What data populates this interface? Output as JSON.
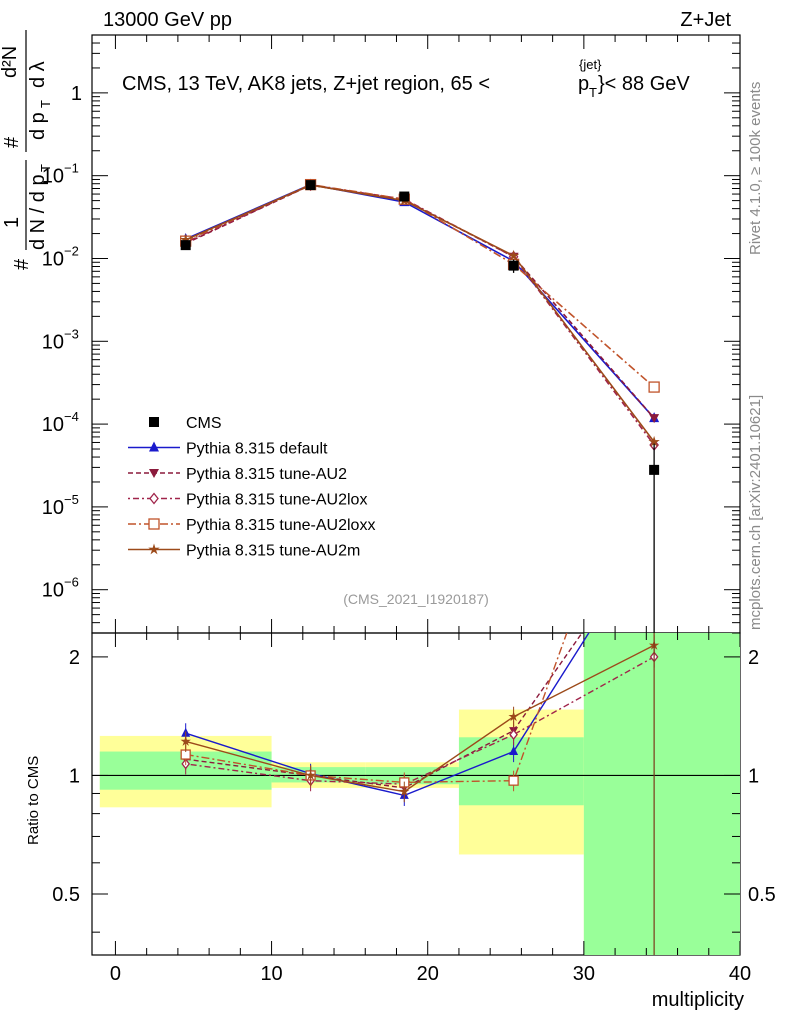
{
  "header": {
    "left": "13000 GeV pp",
    "right": "Z+Jet",
    "plot_title": "CMS, 13 TeV, AK8 jets, Z+jet region, 65 <",
    "plot_title_pt": "p",
    "plot_title_pt_sub": "T",
    "plot_title_pt_sup": "{jet}",
    "plot_title_end": "}< 88 GeV"
  },
  "sidebar": {
    "rivet": "Rivet 4.1.0, ≥ 100k events",
    "mcplots": "mcplots.cern.ch [arXiv:2401.10621]"
  },
  "analysis_id": "(CMS_2021_I1920187)",
  "ylabel_main": {
    "hash": "#",
    "one": "1",
    "dN": "d N / d p",
    "T": "T",
    "hash2": "#",
    "d2N": "d²N",
    "dpT": "d p",
    "dlambda": "d λ"
  },
  "ylabel_ratio": "Ratio to CMS",
  "colors": {
    "data": "#000000",
    "default": "#1a1acc",
    "au2": "#8b1a3c",
    "au2lox": "#a0244a",
    "au2loxx": "#c0532a",
    "au2m": "#9c4a1a",
    "band_inner": "#99ff99",
    "band_outer": "#ffff99"
  },
  "chart_data": {
    "type": "line",
    "title": "CMS, 13 TeV, AK8 jets, Z+jet region, 65 < p_T^{jet} < 88 GeV",
    "xlabel": "multiplicity",
    "ylabel": "1/dN/dpT dN²/dpT dλ",
    "xlim": [
      -1.5,
      40
    ],
    "ylim_main": [
      3e-07,
      5
    ],
    "ylim_ratio": [
      0.35,
      2.3
    ],
    "x_ticks": [
      "0",
      "10",
      "20",
      "30",
      "40"
    ],
    "y_ticks_main": [
      "10",
      "10",
      "10",
      "10",
      "10",
      "10",
      "1"
    ],
    "y_tick_exponents": [
      "−6",
      "−5",
      "−4",
      "−3",
      "−2",
      "−1",
      ""
    ],
    "y_ticks_ratio": [
      "0.5",
      "1",
      "2"
    ],
    "bins": [
      {
        "low": -1,
        "high": 10
      },
      {
        "low": 10,
        "high": 16
      },
      {
        "low": 16,
        "high": 22
      },
      {
        "low": 22,
        "high": 30
      },
      {
        "low": 30,
        "high": 40
      }
    ],
    "x": [
      4.5,
      12.5,
      18.5,
      25.5,
      34.5
    ],
    "data": {
      "name": "CMS",
      "values": [
        0.0145,
        0.077,
        0.056,
        0.0082,
        2.8e-05
      ],
      "err_low": [
        0.0012,
        0.003,
        0.003,
        0.0015,
        2.8e-05
      ],
      "err_high": [
        0.0012,
        0.003,
        0.003,
        0.0015,
        3e-05
      ]
    },
    "series": [
      {
        "name": "Pythia 8.315 default",
        "key": "default",
        "marker": "triangle-up",
        "dash": "",
        "values": [
          0.0172,
          0.078,
          0.048,
          0.0093,
          0.000118
        ],
        "ratio": [
          1.28,
          1.01,
          0.89,
          1.15,
          4.2
        ]
      },
      {
        "name": "Pythia 8.315 tune-AU2",
        "key": "au2",
        "marker": "triangle-down",
        "dash": "5,3",
        "values": [
          0.0152,
          0.077,
          0.051,
          0.0105,
          0.000118
        ],
        "ratio": [
          1.1,
          1.0,
          0.93,
          1.3,
          4.2
        ]
      },
      {
        "name": "Pythia 8.315 tune-AU2lox",
        "key": "au2lox",
        "marker": "diamond",
        "dash": "2,3,6,3",
        "values": [
          0.0156,
          0.077,
          0.052,
          0.0105,
          5.6e-05
        ],
        "ratio": [
          1.07,
          0.97,
          0.95,
          1.27,
          2.0
        ]
      },
      {
        "name": "Pythia 8.315 tune-AU2loxx",
        "key": "au2loxx",
        "marker": "square-open",
        "dash": "8,3,2,3",
        "values": [
          0.0162,
          0.078,
          0.052,
          0.0085,
          0.00028
        ],
        "ratio": [
          1.13,
          1.0,
          0.96,
          0.97,
          9.5
        ]
      },
      {
        "name": "Pythia 8.315 tune-AU2m",
        "key": "au2m",
        "marker": "star",
        "dash": "",
        "values": [
          0.0168,
          0.077,
          0.05,
          0.0108,
          6.1e-05
        ],
        "ratio": [
          1.22,
          1.0,
          0.91,
          1.41,
          2.14
        ]
      }
    ],
    "ratio_band_inner": [
      [
        0.92,
        1.15
      ],
      [
        0.96,
        1.05
      ],
      [
        0.95,
        1.05
      ],
      [
        0.84,
        1.25
      ],
      [
        0.3,
        2.4
      ]
    ],
    "ratio_band_outer": [
      [
        0.83,
        1.26
      ],
      [
        0.93,
        1.08
      ],
      [
        0.93,
        1.08
      ],
      [
        0.63,
        1.47
      ],
      [
        0.3,
        2.4
      ]
    ],
    "legend_position": "lower-left"
  }
}
